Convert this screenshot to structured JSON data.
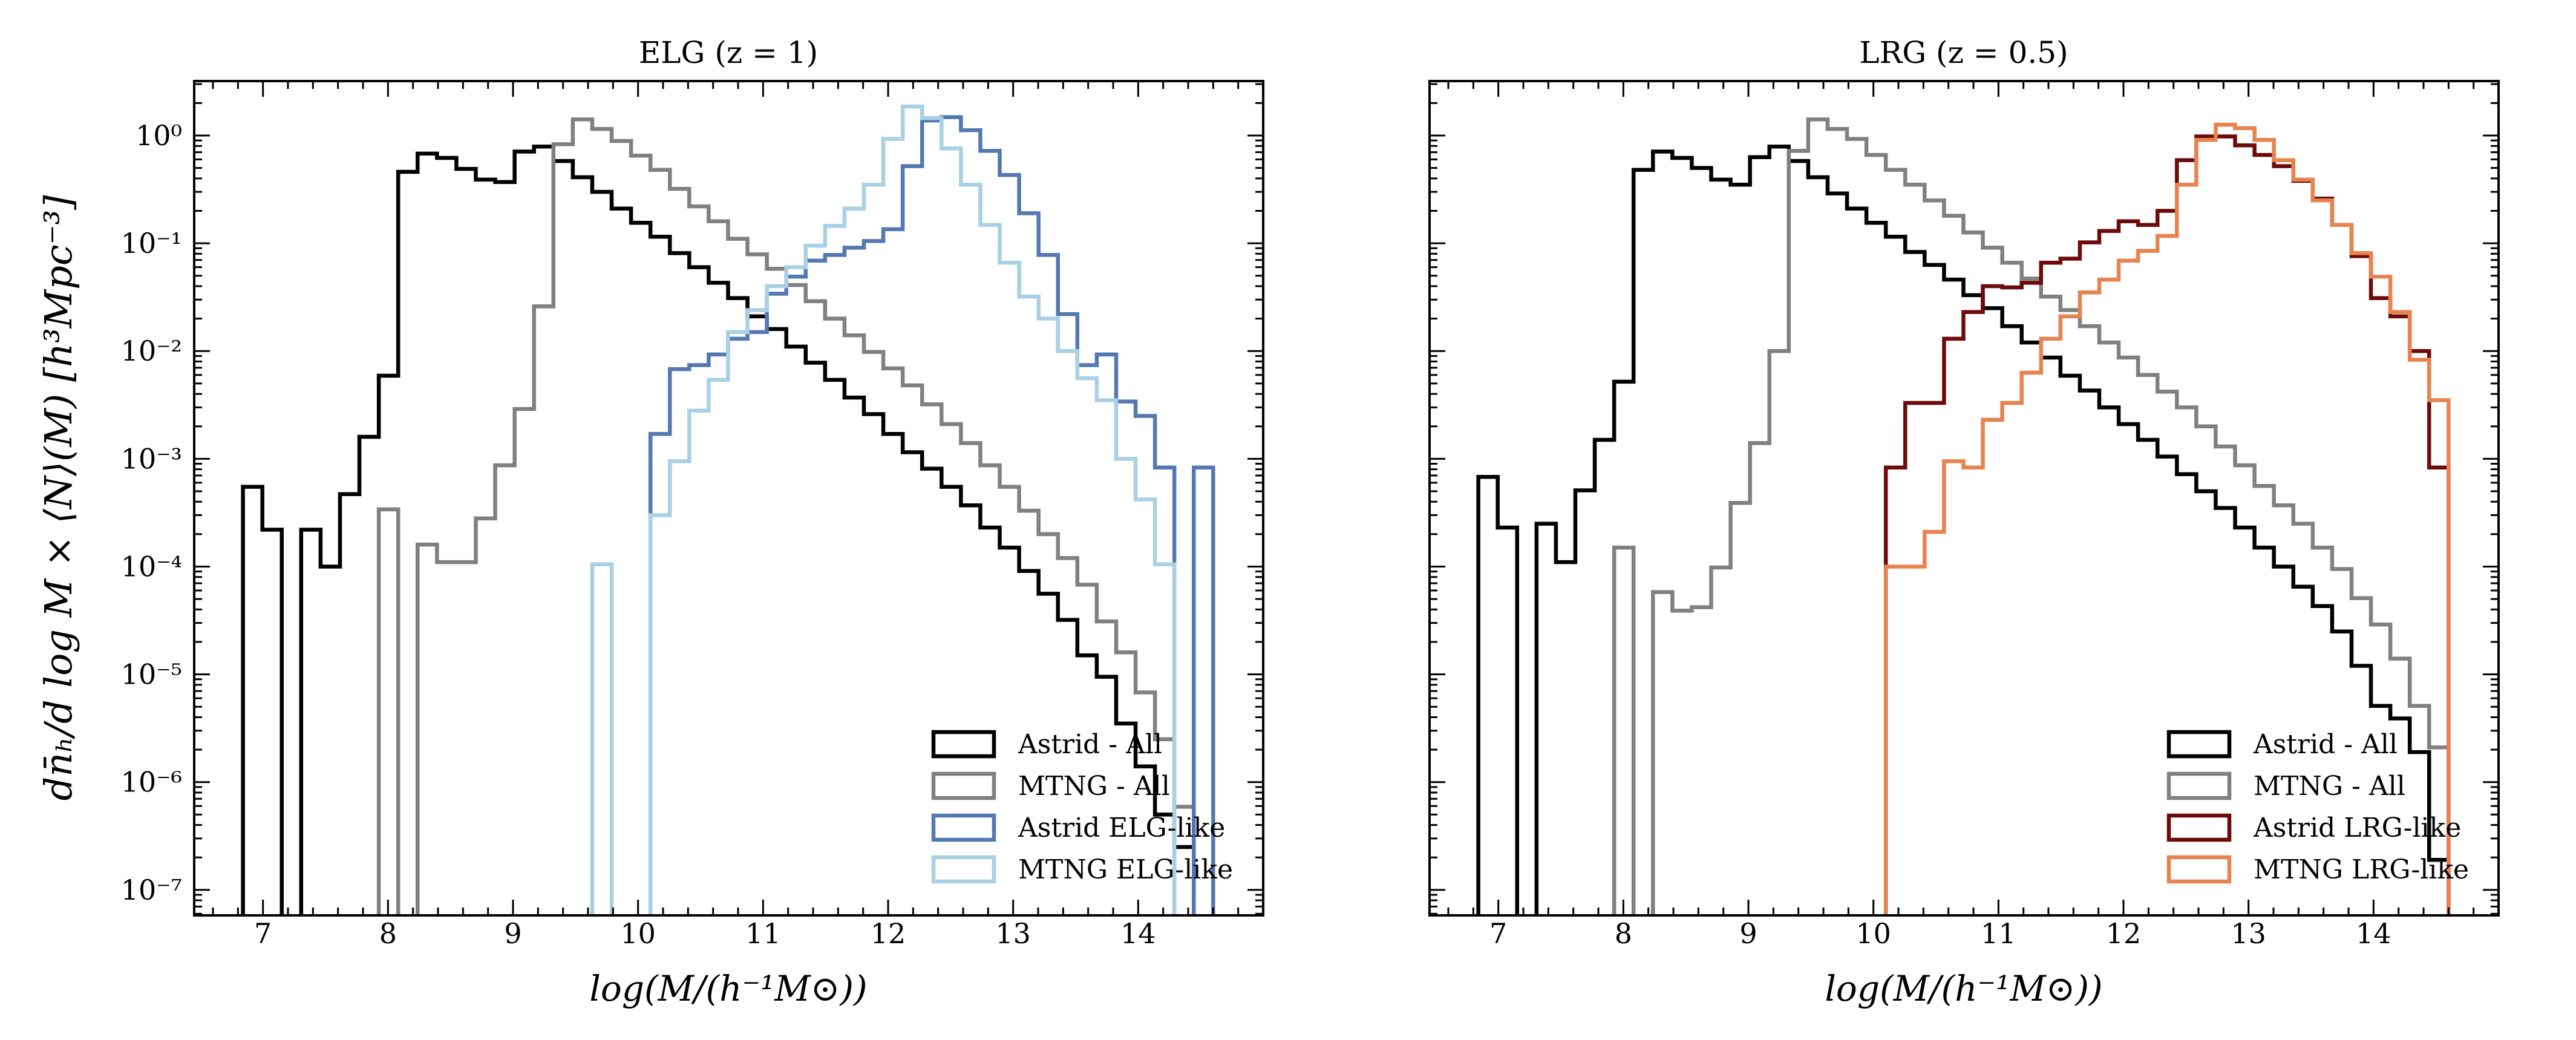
{
  "chart_data": [
    {
      "type": "histogram-step",
      "title": "ELG (z = 1)",
      "xlabel": "log(M/(h⁻¹M⊙))",
      "ylabel": "dn̄ₕ/d log M × ⟨N⟩(M) [h³Mpc⁻³]",
      "xlim": [
        6.45,
        15.0
      ],
      "ylim": [
        5.8e-08,
        3.2
      ],
      "yscale": "log",
      "xticks": [
        "7",
        "8",
        "9",
        "10",
        "11",
        "12",
        "13",
        "14"
      ],
      "yticks": [
        "10⁰",
        "10⁻¹",
        "10⁻²",
        "10⁻³",
        "10⁻⁴",
        "10⁻⁵",
        "10⁻⁶",
        "10⁻⁷"
      ],
      "bin_range": [
        6.84,
        14.6
      ],
      "n_bins": 50,
      "legend_position": "lower-right",
      "grid": false,
      "series": [
        {
          "name": "Astrid - All",
          "color": "#000000",
          "values": [
            0.00055,
            0.00022,
            null,
            0.00022,
            0.0001,
            0.00047,
            0.0016,
            0.0059,
            0.46,
            0.68,
            0.62,
            0.49,
            0.39,
            0.37,
            0.71,
            0.79,
            0.58,
            0.41,
            0.3,
            0.21,
            0.155,
            0.115,
            0.081,
            0.06,
            0.043,
            0.031,
            0.021,
            0.016,
            0.011,
            0.0078,
            0.0054,
            0.0037,
            0.0026,
            0.0017,
            0.00115,
            0.00081,
            0.00055,
            0.00037,
            0.00023,
            0.00015,
            9.1e-05,
            5.6e-05,
            3.2e-05,
            1.5e-05,
            9.5e-06,
            3.5e-06,
            1.4e-06,
            5e-07,
            2.5e-07,
            null
          ]
        },
        {
          "name": "MTNG - All",
          "color": "#808080",
          "values": [
            null,
            null,
            null,
            null,
            null,
            null,
            null,
            0.00034,
            null,
            0.00016,
            0.00011,
            0.00011,
            0.00028,
            0.00087,
            0.0029,
            0.026,
            0.83,
            1.41,
            1.15,
            0.89,
            0.65,
            0.48,
            0.32,
            0.22,
            0.16,
            0.11,
            0.079,
            0.058,
            0.041,
            0.029,
            0.02,
            0.014,
            0.0098,
            0.0069,
            0.0048,
            0.0032,
            0.0021,
            0.0014,
            0.00087,
            0.00055,
            0.00033,
            0.0002,
            0.00012,
            6.8e-05,
            3.1e-05,
            1.6e-05,
            6.8e-06,
            2.5e-06,
            5.9e-07,
            null
          ]
        },
        {
          "name": "Astrid ELG-like",
          "color": "#5479b1",
          "values": [
            null,
            null,
            null,
            null,
            null,
            null,
            null,
            null,
            null,
            null,
            null,
            null,
            null,
            null,
            null,
            null,
            null,
            null,
            null,
            null,
            null,
            0.0017,
            0.0068,
            0.0074,
            0.0093,
            0.013,
            0.015,
            0.034,
            0.049,
            0.069,
            0.078,
            0.091,
            0.105,
            0.135,
            0.52,
            1.38,
            1.48,
            1.12,
            0.72,
            0.43,
            0.19,
            0.078,
            0.022,
            0.0074,
            0.0093,
            0.0034,
            0.0025,
            0.00083,
            null,
            0.00083
          ]
        },
        {
          "name": "MTNG ELG-like",
          "color": "#a9d0e4",
          "values": [
            null,
            null,
            null,
            null,
            null,
            null,
            null,
            null,
            null,
            null,
            null,
            null,
            null,
            null,
            null,
            null,
            null,
            null,
            0.000105,
            null,
            null,
            0.0003,
            0.00095,
            0.0028,
            0.0054,
            0.015,
            0.024,
            0.04,
            0.06,
            0.095,
            0.145,
            0.21,
            0.35,
            0.93,
            1.86,
            1.45,
            0.76,
            0.35,
            0.148,
            0.066,
            0.032,
            0.02,
            0.01,
            0.0056,
            0.0035,
            0.001,
            0.00042,
            0.000105,
            null,
            null
          ]
        }
      ]
    },
    {
      "type": "histogram-step",
      "title": "LRG (z = 0.5)",
      "xlabel": "log(M/(h⁻¹M⊙))",
      "xlim": [
        6.45,
        15.0
      ],
      "ylim": [
        5.8e-08,
        3.2
      ],
      "yscale": "log",
      "xticks": [
        "7",
        "8",
        "9",
        "10",
        "11",
        "12",
        "13",
        "14"
      ],
      "bin_range": [
        6.84,
        14.6
      ],
      "n_bins": 50,
      "legend_position": "lower-right",
      "grid": false,
      "series": [
        {
          "name": "Astrid - All",
          "color": "#000000",
          "values": [
            0.00068,
            0.00023,
            null,
            0.00025,
            0.00011,
            0.00051,
            0.0015,
            0.0052,
            0.48,
            0.71,
            0.62,
            0.5,
            0.39,
            0.35,
            0.63,
            0.79,
            0.58,
            0.41,
            0.29,
            0.21,
            0.155,
            0.115,
            0.083,
            0.063,
            0.046,
            0.033,
            0.025,
            0.017,
            0.012,
            0.0087,
            0.0059,
            0.0043,
            0.003,
            0.0021,
            0.0015,
            0.00105,
            0.00072,
            0.0005,
            0.00035,
            0.00023,
            0.00015,
            0.0001,
            6.5e-05,
            4.3e-05,
            2.5e-05,
            1.2e-05,
            5.1e-06,
            3.9e-06,
            1.9e-06,
            1.9e-07
          ]
        },
        {
          "name": "MTNG - All",
          "color": "#808080",
          "values": [
            null,
            null,
            null,
            null,
            null,
            null,
            null,
            0.00015,
            null,
            5.8e-05,
            3.9e-05,
            4.2e-05,
            9.8e-05,
            0.00039,
            0.0014,
            0.01,
            0.72,
            1.41,
            1.15,
            0.93,
            0.66,
            0.48,
            0.35,
            0.25,
            0.18,
            0.126,
            0.091,
            0.066,
            0.047,
            0.032,
            0.024,
            0.017,
            0.012,
            0.0087,
            0.006,
            0.0042,
            0.003,
            0.002,
            0.0013,
            0.00087,
            0.00056,
            0.00037,
            0.00025,
            0.00015,
            9.5e-05,
            5.1e-05,
            2.9e-05,
            1.4e-05,
            5.1e-06,
            2.1e-06
          ]
        },
        {
          "name": "Astrid LRG-like",
          "color": "#6e0a0a",
          "values": [
            null,
            null,
            null,
            null,
            null,
            null,
            null,
            null,
            null,
            null,
            null,
            null,
            null,
            null,
            null,
            null,
            null,
            null,
            null,
            null,
            null,
            0.00083,
            0.0033,
            0.0033,
            0.013,
            0.023,
            0.04,
            0.039,
            0.043,
            0.066,
            0.072,
            0.102,
            0.13,
            0.16,
            0.148,
            0.2,
            0.59,
            0.98,
            0.98,
            0.81,
            0.66,
            0.52,
            0.38,
            0.26,
            0.148,
            0.076,
            0.031,
            0.021,
            0.01,
            0.00083
          ]
        },
        {
          "name": "MTNG LRG-like",
          "color": "#e8834f",
          "values": [
            null,
            null,
            null,
            null,
            null,
            null,
            null,
            null,
            null,
            null,
            null,
            null,
            null,
            null,
            null,
            null,
            null,
            null,
            null,
            null,
            null,
            0.0001,
            0.0001,
            0.00021,
            0.00095,
            0.00083,
            0.0023,
            0.0033,
            0.0063,
            0.013,
            0.021,
            0.035,
            0.046,
            0.069,
            0.085,
            0.117,
            0.35,
            0.91,
            1.26,
            1.17,
            0.91,
            0.59,
            0.39,
            0.25,
            0.148,
            0.081,
            0.049,
            0.023,
            0.0083,
            0.0035
          ]
        }
      ]
    }
  ]
}
